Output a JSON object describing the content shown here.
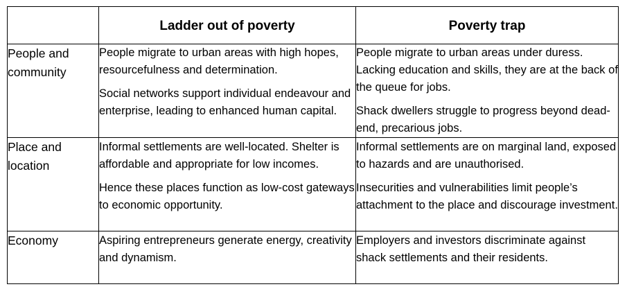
{
  "headers": {
    "empty": "",
    "ladder": "Ladder out of poverty",
    "trap": "Poverty trap"
  },
  "rows": [
    {
      "label": [
        "People and",
        "community"
      ],
      "ladder": [
        "People migrate to urban areas with high hopes, resourcefulness and determination.",
        "Social networks support individual endeavour and enterprise, leading to enhanced human capital."
      ],
      "trap": [
        "People migrate to urban areas under duress. Lacking education and skills, they are at the back of the queue for jobs.",
        "Shack dwellers struggle to progress beyond dead-end, precarious jobs."
      ]
    },
    {
      "label": [
        "Place and",
        "location"
      ],
      "ladder": [
        "Informal settlements are well-located. Shelter is affordable and appropriate for low incomes.",
        "Hence these places function as low-cost gateways to economic opportunity."
      ],
      "trap": [
        "Informal settlements are on marginal land, exposed to hazards and are unauthorised.",
        "Insecurities and vulnerabilities limit people’s attachment to the place and discourage investment."
      ]
    },
    {
      "label": [
        "Economy"
      ],
      "ladder": [
        "Aspiring entrepreneurs generate energy, creativity and dynamism."
      ],
      "trap": [
        "Employers and investors discriminate against shack settlements and their residents."
      ]
    }
  ]
}
